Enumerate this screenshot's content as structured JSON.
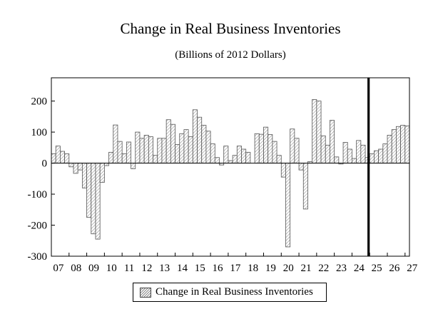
{
  "chart_data": {
    "type": "bar",
    "title": "Change in Real Business Inventories",
    "subtitle": "(Billions of 2012 Dollars)",
    "legend": "Change in Real Business Inventories",
    "ylim": [
      -300,
      275
    ],
    "yticks": [
      200,
      100,
      0,
      -100,
      -200,
      -300
    ],
    "x_tick_labels": [
      "07",
      "08",
      "09",
      "10",
      "11",
      "12",
      "13",
      "14",
      "15",
      "16",
      "17",
      "18",
      "19",
      "20",
      "21",
      "22",
      "23",
      "24",
      "25",
      "26",
      "27"
    ],
    "forecast_divider_after_quarter": "2024 Q3",
    "bar_fill": "diagonal-hatch",
    "start": "2007 Q1",
    "frequency": "quarterly",
    "values": [
      30,
      55,
      38,
      30,
      -12,
      -33,
      -22,
      -80,
      -175,
      -228,
      -245,
      -62,
      -8,
      35,
      123,
      70,
      30,
      68,
      -18,
      100,
      80,
      90,
      85,
      25,
      80,
      80,
      140,
      125,
      60,
      95,
      108,
      85,
      172,
      148,
      122,
      103,
      62,
      18,
      -6,
      55,
      8,
      25,
      55,
      45,
      35,
      0,
      95,
      93,
      116,
      92,
      70,
      25,
      -45,
      -270,
      110,
      80,
      -22,
      -148,
      5,
      205,
      200,
      88,
      58,
      138,
      20,
      -3,
      67,
      45,
      15,
      73,
      58,
      18,
      30,
      40,
      45,
      62,
      90,
      108,
      118,
      122,
      120
    ]
  }
}
